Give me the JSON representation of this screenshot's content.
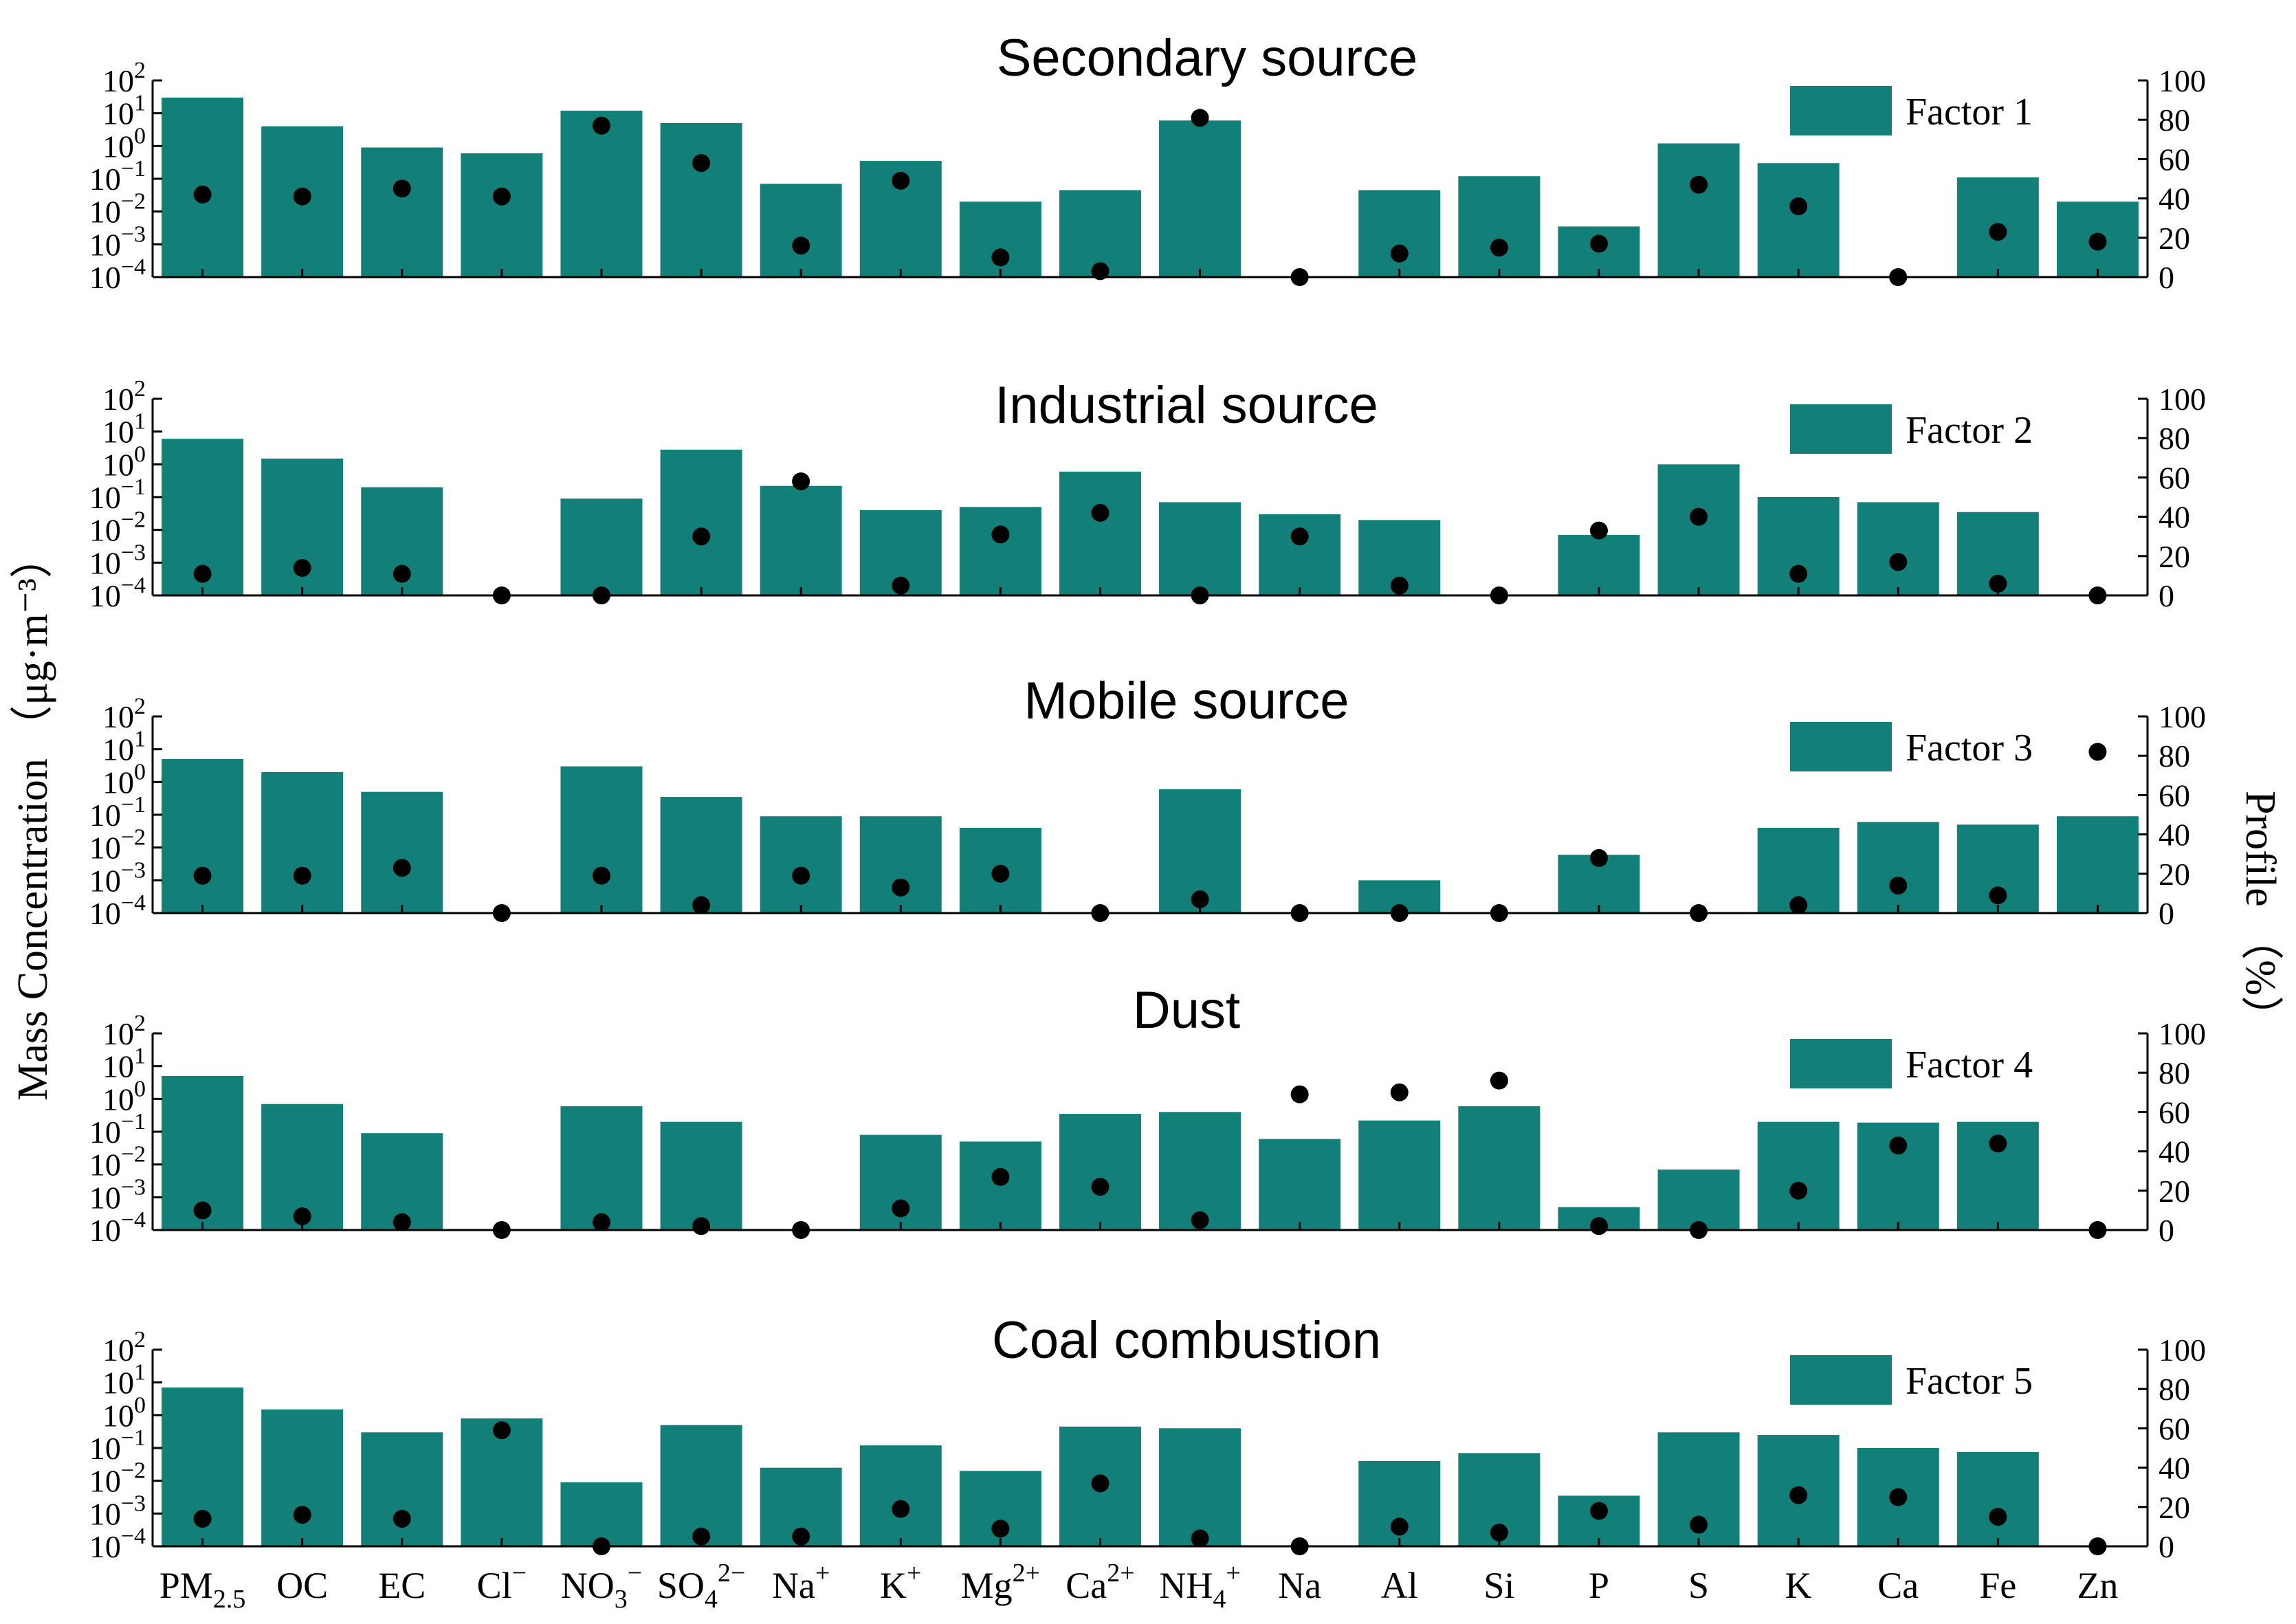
{
  "figure": {
    "y_left_label": "Mass Concentration （μg·m⁻³）",
    "y_right_label": "Profile （%）",
    "log_tick_labels": [
      "10^2",
      "10^1",
      "10^0",
      "10^-1",
      "10^-2",
      "10^-3",
      "10^-4"
    ],
    "right_tick_labels": [
      "100",
      "80",
      "60",
      "40",
      "20",
      "0"
    ],
    "bar_color": "#127F79",
    "dot_color": "#000000"
  },
  "categories": [
    {
      "main": "PM",
      "sub": "2.5",
      "sup": ""
    },
    {
      "main": "OC",
      "sub": "",
      "sup": ""
    },
    {
      "main": "EC",
      "sub": "",
      "sup": ""
    },
    {
      "main": "Cl",
      "sub": "",
      "sup": "−"
    },
    {
      "main": "NO",
      "sub": "3",
      "sup": "−"
    },
    {
      "main": "SO",
      "sub": "4",
      "sup": "2−"
    },
    {
      "main": "Na",
      "sub": "",
      "sup": "+"
    },
    {
      "main": "K",
      "sub": "",
      "sup": "+"
    },
    {
      "main": "Mg",
      "sub": "",
      "sup": "2+"
    },
    {
      "main": "Ca",
      "sub": "",
      "sup": "2+"
    },
    {
      "main": "NH",
      "sub": "4",
      "sup": "+"
    },
    {
      "main": "Na",
      "sub": "",
      "sup": ""
    },
    {
      "main": "Al",
      "sub": "",
      "sup": ""
    },
    {
      "main": "Si",
      "sub": "",
      "sup": ""
    },
    {
      "main": "P",
      "sub": "",
      "sup": ""
    },
    {
      "main": "S",
      "sub": "",
      "sup": ""
    },
    {
      "main": "K",
      "sub": "",
      "sup": ""
    },
    {
      "main": "Ca",
      "sub": "",
      "sup": ""
    },
    {
      "main": "Fe",
      "sub": "",
      "sup": ""
    },
    {
      "main": "Zn",
      "sub": "",
      "sup": ""
    }
  ],
  "chart_data": [
    {
      "type": "bar",
      "title": "Secondary source",
      "legend": "Factor 1",
      "ylim_left": [
        0.0001,
        100
      ],
      "ylim_right": [
        0,
        100
      ],
      "mass_concentration": [
        30,
        4,
        0.9,
        0.6,
        12,
        5,
        0.07,
        0.35,
        0.02,
        0.045,
        6,
        null,
        0.045,
        0.12,
        0.0035,
        1.2,
        0.3,
        null,
        0.11,
        0.02
      ],
      "profile_percent": [
        42,
        41,
        45,
        41,
        77,
        58,
        16,
        49,
        10,
        3,
        81,
        0,
        12,
        15,
        17,
        47,
        36,
        0,
        23,
        18
      ]
    },
    {
      "type": "bar",
      "title": "Industrial source",
      "legend": "Factor 2",
      "ylim_left": [
        0.0001,
        100
      ],
      "ylim_right": [
        0,
        100
      ],
      "mass_concentration": [
        6,
        1.5,
        0.2,
        null,
        0.09,
        2.8,
        0.22,
        0.04,
        0.05,
        0.6,
        0.07,
        0.03,
        0.02,
        null,
        0.007,
        1,
        0.1,
        0.07,
        0.035,
        null
      ],
      "profile_percent": [
        11,
        14,
        11,
        0,
        0,
        30,
        58,
        5,
        31,
        42,
        0,
        30,
        5,
        0,
        33,
        40,
        11,
        17,
        6,
        0
      ]
    },
    {
      "type": "bar",
      "title": "Mobile source",
      "legend": "Factor 3",
      "ylim_left": [
        0.0001,
        100
      ],
      "ylim_right": [
        0,
        100
      ],
      "mass_concentration": [
        5,
        2,
        0.5,
        null,
        3,
        0.35,
        0.09,
        0.09,
        0.04,
        null,
        0.6,
        null,
        0.001,
        null,
        0.006,
        null,
        0.04,
        0.06,
        0.05,
        0.09
      ],
      "profile_percent": [
        19,
        19,
        23,
        0,
        19,
        4,
        19,
        13,
        20,
        0,
        7,
        0,
        0,
        0,
        28,
        0,
        4,
        14,
        9,
        82
      ]
    },
    {
      "type": "bar",
      "title": "Dust",
      "legend": "Factor 4",
      "ylim_left": [
        0.0001,
        100
      ],
      "ylim_right": [
        0,
        100
      ],
      "mass_concentration": [
        5,
        0.7,
        0.09,
        null,
        0.6,
        0.2,
        null,
        0.08,
        0.05,
        0.35,
        0.4,
        0.06,
        0.22,
        0.6,
        0.0005,
        0.007,
        0.2,
        0.19,
        0.2,
        null
      ],
      "profile_percent": [
        10,
        7,
        4,
        0,
        4,
        2,
        0,
        11,
        27,
        22,
        5,
        69,
        70,
        76,
        2,
        0,
        20,
        43,
        44,
        0
      ]
    },
    {
      "type": "bar",
      "title": "Coal combustion",
      "legend": "Factor 5",
      "ylim_left": [
        0.0001,
        100
      ],
      "ylim_right": [
        0,
        100
      ],
      "mass_concentration": [
        7,
        1.5,
        0.3,
        0.8,
        0.009,
        0.5,
        0.025,
        0.12,
        0.02,
        0.45,
        0.4,
        null,
        0.04,
        0.07,
        0.0035,
        0.3,
        0.25,
        0.1,
        0.075,
        null
      ],
      "profile_percent": [
        14,
        16,
        14,
        59,
        0,
        5,
        5,
        19,
        9,
        32,
        4,
        0,
        10,
        7,
        18,
        11,
        26,
        25,
        15,
        0
      ]
    }
  ]
}
